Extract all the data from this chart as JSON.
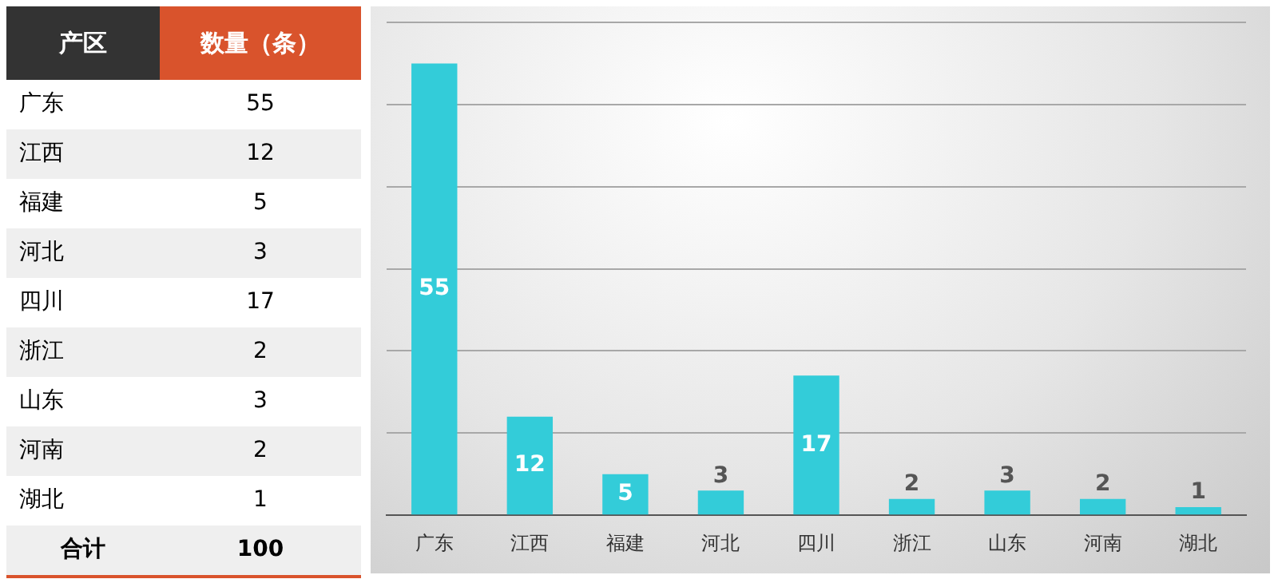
{
  "chart_data": [
    {
      "type": "other",
      "categories": [
        "广东",
        "江西",
        "福建",
        "河北",
        "四川",
        "浙江",
        "山东",
        "河南",
        "湖北"
      ],
      "values": [
        55,
        12,
        5,
        3,
        17,
        2,
        3,
        2,
        1
      ],
      "data_labels": true,
      "annotations": [
        "产区",
        "数量（条）",
        "合计",
        "100"
      ]
    },
    {
      "type": "bar",
      "categories": [
        "广东",
        "江西",
        "福建",
        "河北",
        "四川",
        "浙江",
        "山东",
        "河南",
        "湖北"
      ],
      "values": [
        55,
        12,
        5,
        3,
        17,
        2,
        3,
        2,
        1
      ],
      "color": "#33ccd9",
      "ylim": [
        0,
        60
      ],
      "yticks": [
        {
          "value": 0,
          "label": null
        },
        {
          "value": 10,
          "label": null
        },
        {
          "value": 20,
          "label": null
        },
        {
          "value": 30,
          "label": null
        },
        {
          "value": 40,
          "label": null
        },
        {
          "value": 50,
          "label": null
        },
        {
          "value": 60,
          "label": null
        }
      ],
      "grid": "y",
      "tick_labels": "x",
      "data_labels": true,
      "legend": false
    }
  ]
}
